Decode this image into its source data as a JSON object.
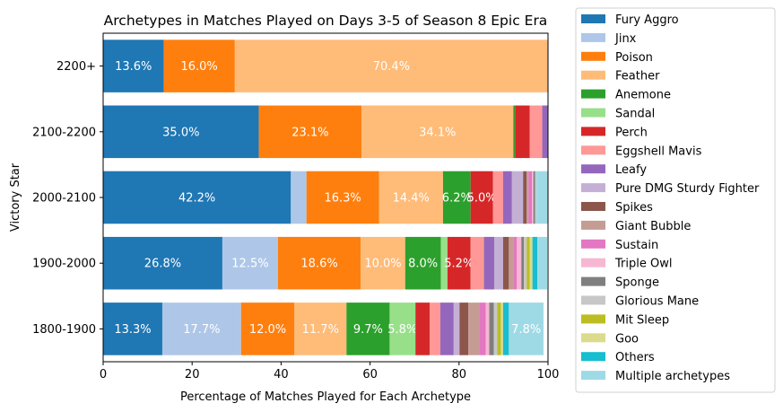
{
  "chart_data": {
    "type": "bar",
    "orientation": "horizontal",
    "stacked": true,
    "title": "Archetypes in Matches Played on Days 3-5 of Season 8 Epic Era",
    "xlabel": "Percentage of Matches Played for Each Archetype",
    "ylabel": "Victory Star",
    "xlim": [
      0,
      100
    ],
    "xticks": [
      "0",
      "20",
      "40",
      "60",
      "80",
      "100"
    ],
    "categories": [
      "2200+",
      "2100-2200",
      "2000-2100",
      "1900-2000",
      "1800-1900"
    ],
    "grid": false,
    "legend_position": "outside-right",
    "label_threshold": 5,
    "series": [
      {
        "name": "Fury Aggro",
        "color": "#1f77b4",
        "values": [
          13.6,
          35.0,
          42.2,
          26.8,
          13.3
        ]
      },
      {
        "name": "Jinx",
        "color": "#aec7e8",
        "values": [
          0,
          0,
          3.5,
          12.5,
          17.7
        ]
      },
      {
        "name": "Poison",
        "color": "#ff7f0e",
        "values": [
          16.0,
          23.1,
          16.3,
          18.6,
          12.0
        ]
      },
      {
        "name": "Feather",
        "color": "#ffbb78",
        "values": [
          70.4,
          34.1,
          14.4,
          10.0,
          11.7
        ]
      },
      {
        "name": "Anemone",
        "color": "#2ca02c",
        "values": [
          0,
          0.4,
          6.2,
          8.0,
          9.7
        ]
      },
      {
        "name": "Sandal",
        "color": "#98df8a",
        "values": [
          0,
          0,
          0,
          1.5,
          5.8
        ]
      },
      {
        "name": "Perch",
        "color": "#d62728",
        "values": [
          0,
          3.3,
          5.0,
          5.2,
          3.2
        ]
      },
      {
        "name": "Eggshell Mavis",
        "color": "#ff9896",
        "values": [
          0,
          2.8,
          2.3,
          3.0,
          2.4
        ]
      },
      {
        "name": "Leafy",
        "color": "#9467bd",
        "values": [
          0,
          1.2,
          2.0,
          2.3,
          3.0
        ]
      },
      {
        "name": "Pure DMG Sturdy Fighter",
        "color": "#c5b0d5",
        "values": [
          0,
          0,
          2.5,
          2.0,
          1.3
        ]
      },
      {
        "name": "Spikes",
        "color": "#8c564b",
        "values": [
          0,
          0,
          0.8,
          1.3,
          2.0
        ]
      },
      {
        "name": "Giant Bubble",
        "color": "#c49c94",
        "values": [
          0,
          0,
          0.4,
          1.0,
          2.4
        ]
      },
      {
        "name": "Sustain",
        "color": "#e377c2",
        "values": [
          0,
          0,
          0.8,
          0.8,
          1.5
        ]
      },
      {
        "name": "Triple Owl",
        "color": "#f7b6d2",
        "values": [
          0,
          0,
          0.3,
          1.0,
          0.8
        ]
      },
      {
        "name": "Sponge",
        "color": "#7f7f7f",
        "values": [
          0,
          0,
          0.4,
          0.6,
          1.0
        ]
      },
      {
        "name": "Glorious Mane",
        "color": "#c7c7c7",
        "values": [
          0,
          0,
          0.3,
          0.6,
          0.8
        ]
      },
      {
        "name": "Mit Sleep",
        "color": "#bcbd22",
        "values": [
          0,
          0,
          0,
          0.7,
          0.8
        ]
      },
      {
        "name": "Goo",
        "color": "#dbdb8d",
        "values": [
          0,
          0,
          0,
          0.6,
          0.5
        ]
      },
      {
        "name": "Others",
        "color": "#17becf",
        "values": [
          0,
          0,
          0,
          1.1,
          1.3
        ]
      },
      {
        "name": "Multiple archetypes",
        "color": "#9edae5",
        "values": [
          0,
          0.1,
          2.6,
          2.2,
          7.8
        ]
      }
    ]
  }
}
